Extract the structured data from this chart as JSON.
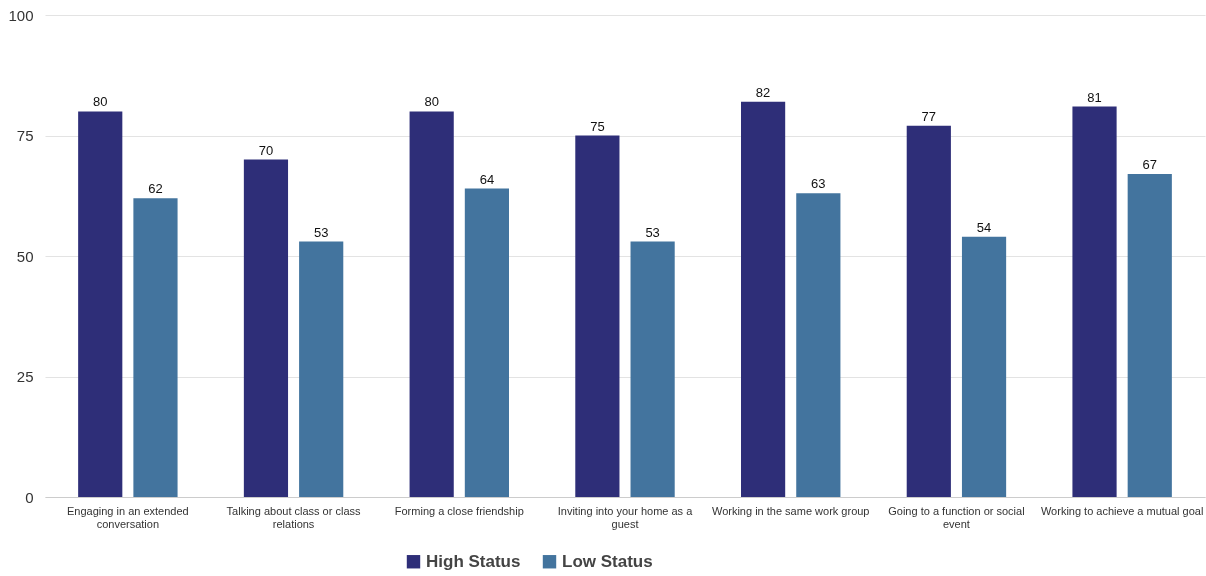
{
  "chart_data": {
    "type": "bar",
    "categories": [
      "Engaging in an extended conversation",
      "Talking about class or class relations",
      "Forming a close friendship",
      "Inviting into your home as a guest",
      "Working in the same work group",
      "Going to a function or social event",
      "Working to achieve a mutual goal"
    ],
    "series": [
      {
        "name": "High Status",
        "color": "#2e2e78",
        "values": [
          80,
          70,
          80,
          75,
          82,
          77,
          81
        ]
      },
      {
        "name": "Low Status",
        "color": "#43749e",
        "values": [
          62,
          53,
          64,
          53,
          63,
          54,
          67
        ]
      }
    ],
    "ylim": [
      0,
      100
    ],
    "yticks": [
      0,
      25,
      50,
      75,
      100
    ],
    "grid": "y",
    "legend": "bottom",
    "data_labels": true
  }
}
